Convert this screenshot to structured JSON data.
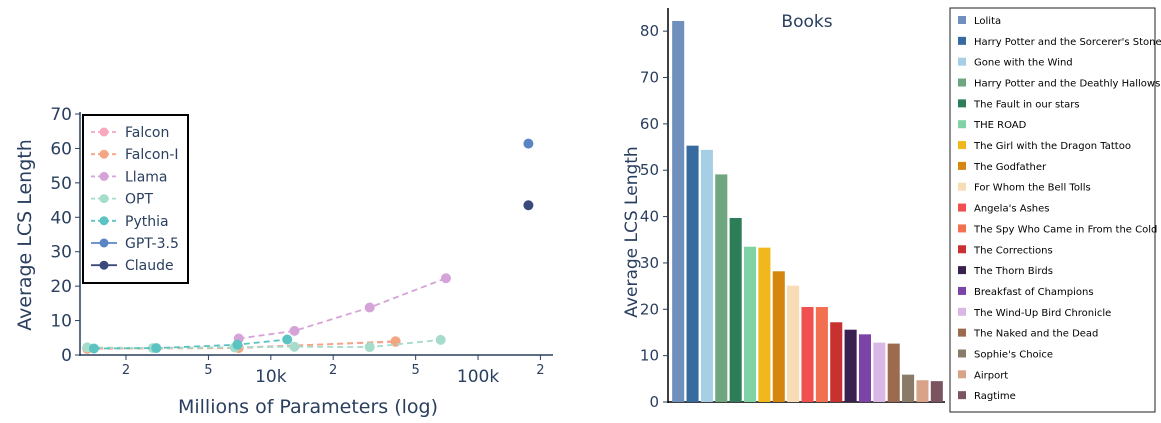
{
  "chart_data": [
    {
      "type": "scatter",
      "xlabel": "Millions of Parameters (log)",
      "ylabel": "Average LCS Length",
      "xscale": "log",
      "xlim": [
        1200,
        230000
      ],
      "ylim": [
        0,
        70
      ],
      "xticks": [
        {
          "value": 2000,
          "label": "2"
        },
        {
          "value": 5000,
          "label": "5"
        },
        {
          "value": 10000,
          "label": "10k"
        },
        {
          "value": 20000,
          "label": "2"
        },
        {
          "value": 50000,
          "label": "5"
        },
        {
          "value": 100000,
          "label": "100k"
        },
        {
          "value": 200000,
          "label": "2"
        }
      ],
      "yticks": [
        0,
        10,
        20,
        30,
        40,
        50,
        60,
        70
      ],
      "grid": false,
      "legend_position": "top-left",
      "series": [
        {
          "name": "Falcon",
          "color": "#f7a8bf",
          "dash": true,
          "x": [
            1300,
            7000,
            40000
          ],
          "y": [
            2.0,
            2.2,
            3.8
          ]
        },
        {
          "name": "Falcon-I",
          "color": "#f4a582",
          "dash": true,
          "x": [
            1300,
            7000,
            40000
          ],
          "y": [
            1.8,
            2.0,
            4.0
          ]
        },
        {
          "name": "Llama",
          "color": "#d6a3d8",
          "dash": true,
          "x": [
            7000,
            13000,
            30000,
            70000
          ],
          "y": [
            4.8,
            7.0,
            13.8,
            22.3
          ]
        },
        {
          "name": "OPT",
          "color": "#a6dccb",
          "dash": true,
          "x": [
            1300,
            2700,
            6700,
            13000,
            30000,
            66000
          ],
          "y": [
            2.2,
            2.0,
            2.2,
            2.4,
            2.3,
            4.4
          ]
        },
        {
          "name": "Pythia",
          "color": "#5cc3c3",
          "dash": true,
          "x": [
            1400,
            2800,
            6900,
            12000
          ],
          "y": [
            1.9,
            2.0,
            3.0,
            4.5
          ]
        },
        {
          "name": "GPT-3.5",
          "color": "#5b84c4",
          "dash": false,
          "x": [
            175000
          ],
          "y": [
            61.4
          ]
        },
        {
          "name": "Claude",
          "color": "#3b4a7a",
          "dash": false,
          "x": [
            175000
          ],
          "y": [
            43.5
          ]
        }
      ]
    },
    {
      "type": "bar",
      "title": "Books",
      "ylabel": "Average LCS Length",
      "ylim": [
        0,
        85
      ],
      "yticks": [
        0,
        10,
        20,
        30,
        40,
        50,
        60,
        70,
        80
      ],
      "grid": false,
      "legend_position": "right",
      "categories": [
        "Lolita",
        "Harry Potter and the Sorcerer's Stone",
        "Gone with the Wind",
        "Harry Potter and the Deathly Hallows",
        "The Fault in our stars",
        "THE ROAD",
        "The Girl with the Dragon Tattoo",
        "The Godfather",
        "For Whom the Bell Tolls",
        "Angela's Ashes",
        "The Spy Who Came in From the Cold",
        "The Corrections",
        "The Thorn Birds",
        "Breakfast of Champions",
        "The Wind-Up Bird Chronicle",
        "The Naked and the Dead",
        "Sophie's Choice",
        "Airport",
        "Ragtime"
      ],
      "values": [
        82.2,
        55.3,
        54.4,
        49.1,
        39.7,
        33.5,
        33.3,
        28.2,
        25.1,
        20.5,
        20.5,
        17.2,
        15.6,
        14.6,
        12.8,
        12.6,
        5.9,
        4.7,
        4.5
      ],
      "colors": [
        "#6f8fbd",
        "#356b9e",
        "#a6cfe6",
        "#6ea67f",
        "#2e7d59",
        "#7fd3a4",
        "#f0b81c",
        "#d4860f",
        "#f8dcb6",
        "#f0504f",
        "#f26f4f",
        "#c7312f",
        "#3a2150",
        "#7b44a6",
        "#dab8e6",
        "#9c6a4e",
        "#8a7a68",
        "#d9a38a",
        "#7a5560"
      ]
    }
  ]
}
